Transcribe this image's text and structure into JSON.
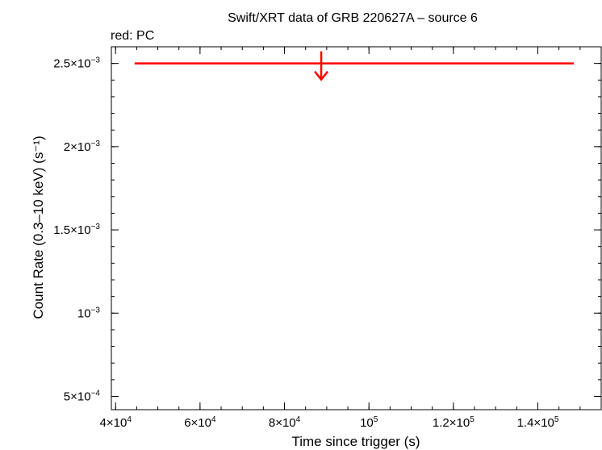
{
  "chart_data": {
    "type": "scatter",
    "title": "Swift/XRT data of GRB 220627A – source 6",
    "subtitle": "red: PC",
    "xlabel": "Time since trigger (s)",
    "ylabel": "Count Rate (0.3–10 keV) (s⁻¹)",
    "xlim": [
      39000,
      155000
    ],
    "ylim": [
      0.00042,
      0.0026
    ],
    "x_ticks": [
      {
        "value": 40000,
        "base": "4×10",
        "exp": "4"
      },
      {
        "value": 60000,
        "base": "6×10",
        "exp": "4"
      },
      {
        "value": 80000,
        "base": "8×10",
        "exp": "4"
      },
      {
        "value": 100000,
        "base": "10",
        "exp": "5"
      },
      {
        "value": 120000,
        "base": "1.2×10",
        "exp": "5"
      },
      {
        "value": 140000,
        "base": "1.4×10",
        "exp": "5"
      }
    ],
    "y_ticks": [
      {
        "value": 0.0005,
        "base": "5×10",
        "exp": "−4"
      },
      {
        "value": 0.001,
        "base": "10",
        "exp": "−3"
      },
      {
        "value": 0.0015,
        "base": "1.5×10",
        "exp": "−3"
      },
      {
        "value": 0.002,
        "base": "2×10",
        "exp": "−3"
      },
      {
        "value": 0.0025,
        "base": "2.5×10",
        "exp": "−3"
      }
    ],
    "x_minor_step": 5000,
    "y_minor_step": 0.0001,
    "series": [
      {
        "name": "PC",
        "color": "#ff0000",
        "points": [
          {
            "x": 88700,
            "xmin": 44500,
            "xmax": 148500,
            "y": 0.0025,
            "upper_limit": true
          }
        ]
      }
    ]
  }
}
